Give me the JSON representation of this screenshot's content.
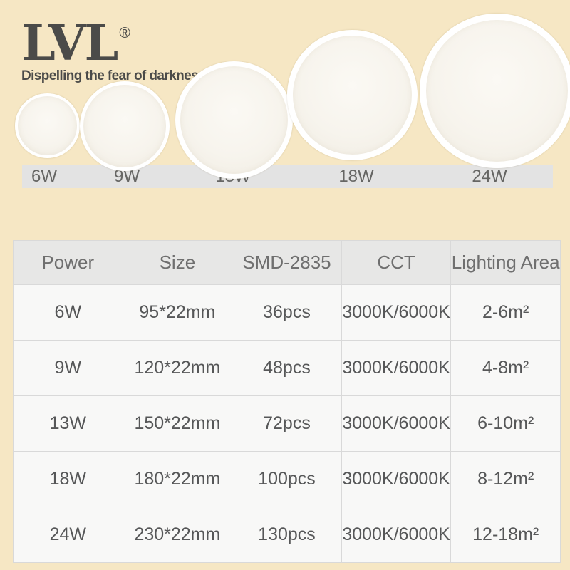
{
  "brand": {
    "name": "LVL",
    "registered_mark": "®",
    "tagline": "Dispelling the fear of darkness"
  },
  "lamps": [
    {
      "wattage": "6W"
    },
    {
      "wattage": "9W"
    },
    {
      "wattage": "13W"
    },
    {
      "wattage": "18W"
    },
    {
      "wattage": "24W"
    }
  ],
  "spec_table": {
    "columns": [
      "Power",
      "Size",
      "SMD-2835",
      "CCT",
      "Lighting Area"
    ],
    "rows": [
      [
        "6W",
        "95*22mm",
        "36pcs",
        "3000K/6000K",
        "2-6m²"
      ],
      [
        "9W",
        "120*22mm",
        "48pcs",
        "3000K/6000K",
        "4-8m²"
      ],
      [
        "13W",
        "150*22mm",
        "72pcs",
        "3000K/6000K",
        "6-10m²"
      ],
      [
        "18W",
        "180*22mm",
        "100pcs",
        "3000K/6000K",
        "8-12m²"
      ],
      [
        "24W",
        "230*22mm",
        "130pcs",
        "3000K/6000K",
        "12-18m²"
      ]
    ]
  },
  "colors": {
    "background": "#f6e7c4",
    "label_band": "#e3e3e3",
    "table_header_bg": "#e7e7e6",
    "table_cell_bg": "#f8f8f7",
    "table_border": "#d9d9d9",
    "brand_text": "#4b4b49",
    "table_text": "#565758",
    "lamp_rim": "#ffffff"
  }
}
